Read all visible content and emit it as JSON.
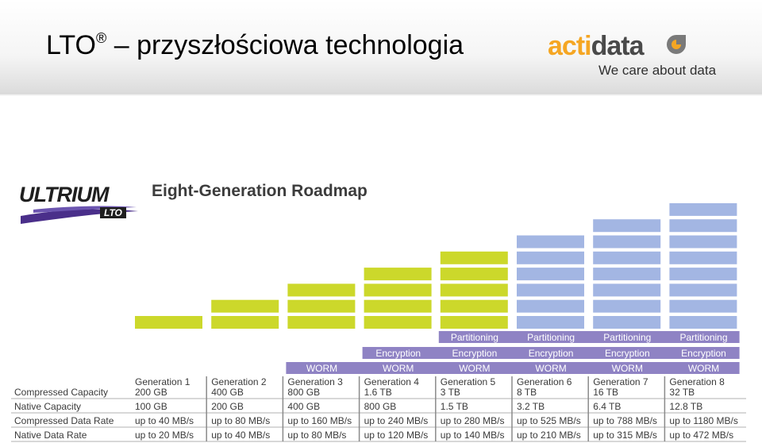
{
  "header": {
    "title": "LTO",
    "registered": "®",
    "title_rest": " – przyszłościowa technologia"
  },
  "logo": {
    "word_a": "acti",
    "word_b": "data",
    "tagline": "We care about data",
    "accent": "#f5a623"
  },
  "ultrium_logo": {
    "text": "ULTRIUM",
    "badge": "LTO"
  },
  "roadmap_title": "Eight-Generation Roadmap",
  "colors": {
    "green_bar": "#ccd82b",
    "blue_bar": "#a3b6e3",
    "feature_bar": "#8f83c4",
    "row_line": "#b0b0b0"
  },
  "chart_data": {
    "type": "table",
    "title": "Eight-Generation Roadmap",
    "row_labels": [
      "Compressed Capacity",
      "Native Capacity",
      "Compressed Data Rate",
      "Native Data Rate"
    ],
    "generations": [
      {
        "name": "Generation 1",
        "compressed_capacity": "200 GB",
        "native_capacity": "100 GB",
        "compressed_rate": "up to 40 MB/s",
        "native_rate": "up to 20 MB/s",
        "blocks": 1,
        "available": true,
        "features": []
      },
      {
        "name": "Generation 2",
        "compressed_capacity": "400 GB",
        "native_capacity": "200 GB",
        "compressed_rate": "up to 80 MB/s",
        "native_rate": "up to 40 MB/s",
        "blocks": 2,
        "available": true,
        "features": []
      },
      {
        "name": "Generation 3",
        "compressed_capacity": "800 GB",
        "native_capacity": "400 GB",
        "compressed_rate": "up to 160 MB/s",
        "native_rate": "up to 80 MB/s",
        "blocks": 3,
        "available": true,
        "features": [
          "WORM"
        ]
      },
      {
        "name": "Generation 4",
        "compressed_capacity": "1.6 TB",
        "native_capacity": "800 GB",
        "compressed_rate": "up to 240 MB/s",
        "native_rate": "up to 120 MB/s",
        "blocks": 4,
        "available": true,
        "features": [
          "WORM",
          "Encryption"
        ]
      },
      {
        "name": "Generation 5",
        "compressed_capacity": "3 TB",
        "native_capacity": "1.5 TB",
        "compressed_rate": "up to 280 MB/s",
        "native_rate": "up to 140 MB/s",
        "blocks": 5,
        "available": true,
        "features": [
          "WORM",
          "Encryption",
          "Partitioning"
        ]
      },
      {
        "name": "Generation 6",
        "compressed_capacity": "8 TB",
        "native_capacity": "3.2 TB",
        "compressed_rate": "up to 525 MB/s",
        "native_rate": "up to 210 MB/s",
        "blocks": 6,
        "available": false,
        "features": [
          "WORM",
          "Encryption",
          "Partitioning"
        ]
      },
      {
        "name": "Generation 7",
        "compressed_capacity": "16 TB",
        "native_capacity": "6.4 TB",
        "compressed_rate": "up to 788 MB/s",
        "native_rate": "up to 315 MB/s",
        "blocks": 7,
        "available": false,
        "features": [
          "WORM",
          "Encryption",
          "Partitioning"
        ]
      },
      {
        "name": "Generation 8",
        "compressed_capacity": "32 TB",
        "native_capacity": "12.8 TB",
        "compressed_rate": "up to 1180 MB/s",
        "native_rate": "up to 472 MB/s",
        "blocks": 8,
        "available": false,
        "features": [
          "WORM",
          "Encryption",
          "Partitioning"
        ]
      }
    ]
  }
}
